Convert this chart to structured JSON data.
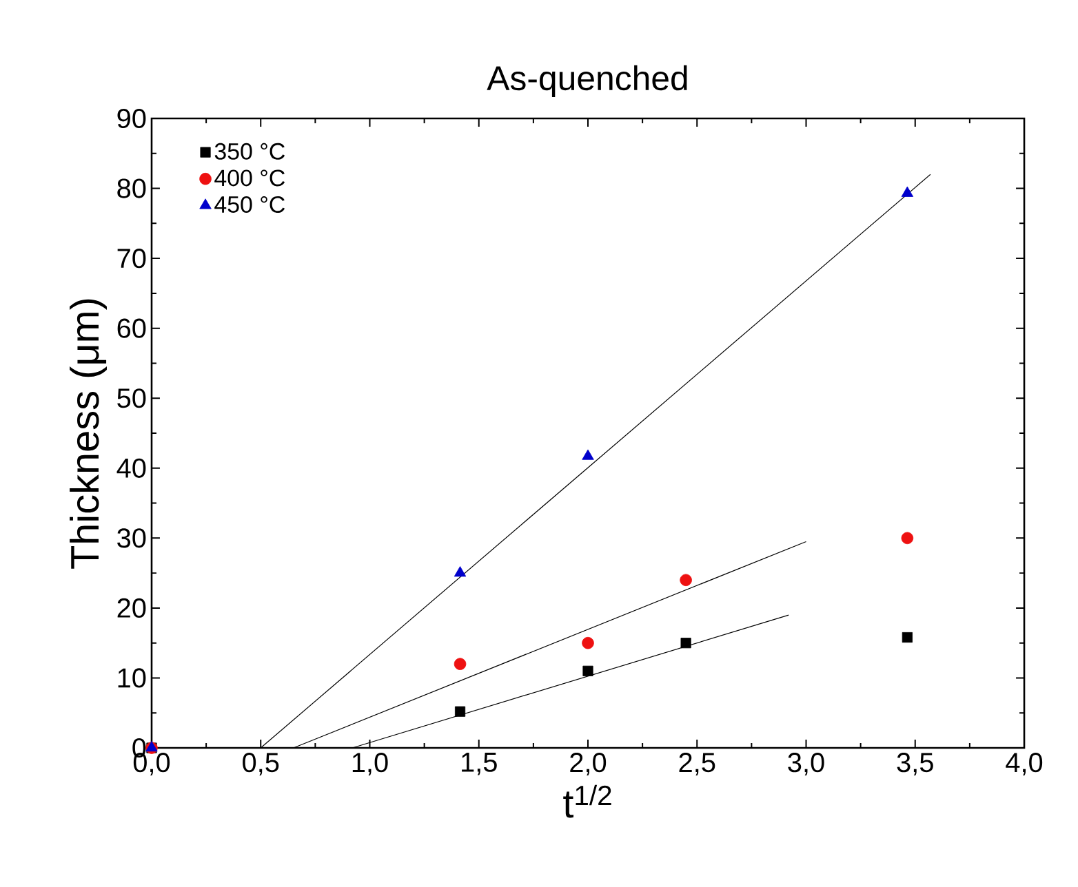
{
  "chart_data": {
    "type": "scatter",
    "title": "As-quenched",
    "xlabel": "t$^{1/2}$",
    "ylabel": "Thickness (μm)",
    "xlim": [
      0,
      4
    ],
    "ylim": [
      0,
      90
    ],
    "xticks": [
      {
        "value": 0,
        "label": "0,0"
      },
      {
        "value": 0.5,
        "label": "0,5"
      },
      {
        "value": 1,
        "label": "1,0"
      },
      {
        "value": 1.5,
        "label": "1,5"
      },
      {
        "value": 2,
        "label": "2,0"
      },
      {
        "value": 2.5,
        "label": "2,5"
      },
      {
        "value": 3,
        "label": "3,0"
      },
      {
        "value": 3.5,
        "label": "3,5"
      },
      {
        "value": 4,
        "label": "4,0"
      }
    ],
    "yticks": [
      0,
      10,
      20,
      30,
      40,
      50,
      60,
      70,
      80,
      90
    ],
    "legend": "top left",
    "grid": false,
    "series": [
      {
        "name": "350 °C",
        "color": "#000000",
        "marker": "square",
        "x": [
          0,
          1.414,
          2,
          2.449,
          3.464
        ],
        "values": [
          0,
          5.2,
          11,
          15,
          15.8
        ]
      },
      {
        "name": "400 °C",
        "color": "#ee1111",
        "marker": "circle",
        "x": [
          0,
          1.414,
          2,
          2.449,
          3.464
        ],
        "values": [
          0,
          12,
          15,
          24,
          30
        ]
      },
      {
        "name": "450 °C",
        "color": "#0000cc",
        "marker": "triangle",
        "x": [
          0,
          1.414,
          2,
          3.464
        ],
        "values": [
          0,
          25,
          41.7,
          79.3
        ]
      },
      {
        "type": "line",
        "color": "#000000",
        "x": [
          0.92,
          2.92
        ],
        "values": [
          0,
          19
        ]
      },
      {
        "type": "line",
        "color": "#000000",
        "x": [
          0.65,
          3.0
        ],
        "values": [
          0,
          29.5
        ]
      },
      {
        "type": "line",
        "color": "#000000",
        "x": [
          0.5,
          3.57
        ],
        "values": [
          0,
          82
        ]
      }
    ]
  }
}
